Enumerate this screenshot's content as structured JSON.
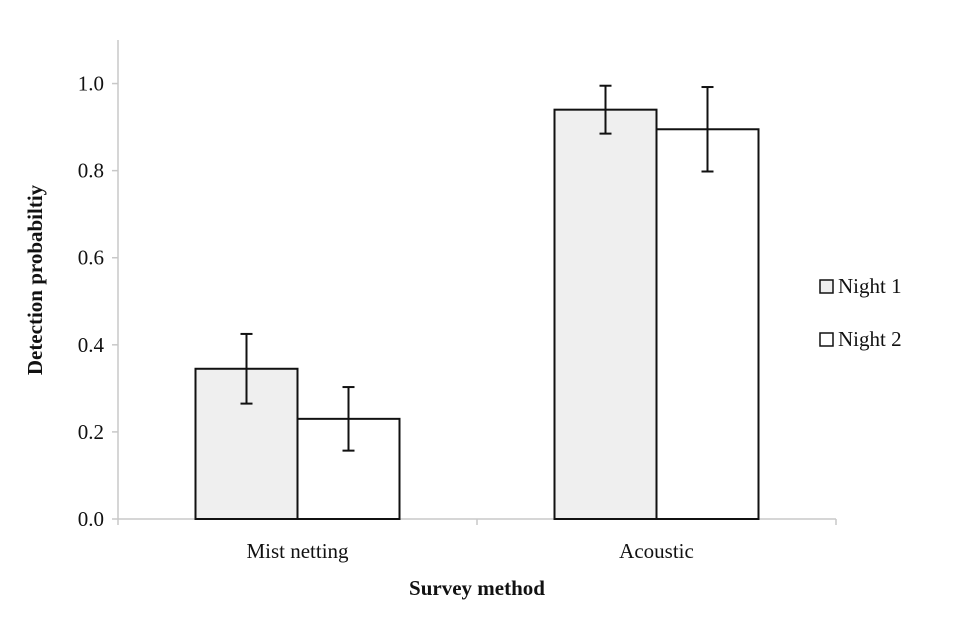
{
  "chart_data": {
    "type": "bar",
    "title": "",
    "xlabel": "Survey method",
    "ylabel": "Detection probabiltiy",
    "categories": [
      "Mist netting",
      "Acoustic"
    ],
    "series": [
      {
        "name": "Night 1",
        "values": [
          0.345,
          0.94
        ],
        "errors": [
          0.08,
          0.055
        ],
        "color": "#efefef"
      },
      {
        "name": "Night 2",
        "values": [
          0.23,
          0.895
        ],
        "errors": [
          0.073,
          0.097
        ],
        "color": "#ffffff"
      }
    ],
    "ylim": [
      0,
      1.1
    ],
    "yticks": [
      "0.0",
      "0.2",
      "0.4",
      "0.6",
      "0.8",
      "1.0"
    ],
    "ytick_values": [
      0,
      0.2,
      0.4,
      0.6,
      0.8,
      1.0
    ],
    "grid": false,
    "legend_position": "right"
  }
}
